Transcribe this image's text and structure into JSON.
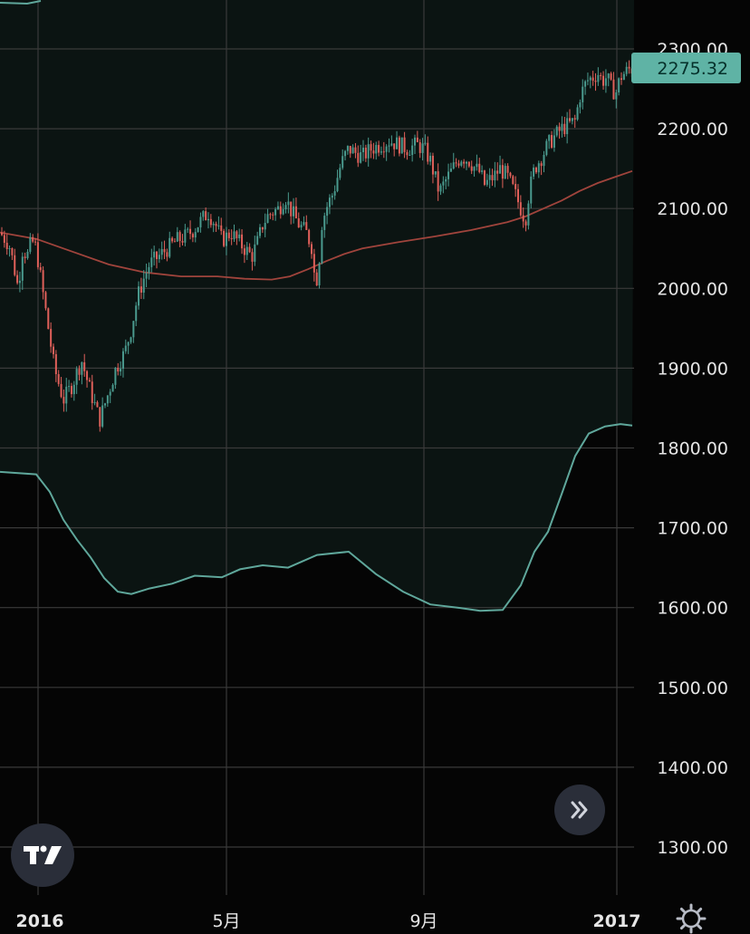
{
  "colors": {
    "background": "#050505",
    "grid": "#3a3a3a",
    "up_candle": "#4a9a8e",
    "down_candle": "#e0605a",
    "envelope": "#5fa79b",
    "envelope_fill": "#0b1412",
    "moving_average": "#a0443c",
    "last_price_badge": "#5fb3a5"
  },
  "last_price": "2275.32",
  "chart_data": {
    "type": "candlestick",
    "ylim": [
      1240,
      2340
    ],
    "y_ticks": [
      {
        "value": 2300,
        "label": "2300.00"
      },
      {
        "value": 2200,
        "label": "2200.00"
      },
      {
        "value": 2100,
        "label": "2100.00"
      },
      {
        "value": 2000,
        "label": "2000.00"
      },
      {
        "value": 1900,
        "label": "1900.00"
      },
      {
        "value": 1800,
        "label": "1800.00"
      },
      {
        "value": 1700,
        "label": "1700.00"
      },
      {
        "value": 1600,
        "label": "1600.00"
      },
      {
        "value": 1500,
        "label": "1500.00"
      },
      {
        "value": 1400,
        "label": "1400.00"
      },
      {
        "value": 1300,
        "label": "1300.00"
      }
    ],
    "x_ticks": [
      {
        "label": "2016",
        "bold": true
      },
      {
        "label": "5月",
        "bold": false
      },
      {
        "label": "9月",
        "bold": false
      },
      {
        "label": "2017",
        "bold": true
      }
    ],
    "price": {
      "x": [
        0,
        10,
        15,
        20,
        25,
        30,
        35,
        40,
        48,
        60,
        70,
        80,
        90,
        100,
        110,
        120,
        128,
        138,
        145,
        152,
        158,
        165,
        175,
        185,
        195,
        205,
        215,
        222,
        230,
        238,
        245,
        255,
        262,
        270,
        278,
        285,
        290,
        295,
        300,
        308,
        315,
        320,
        325,
        330,
        338,
        345,
        348,
        352,
        355,
        360,
        368,
        375,
        380,
        385,
        392,
        400,
        410,
        420,
        430,
        440,
        450,
        460,
        468,
        475,
        480,
        485,
        492,
        500,
        505,
        510,
        518,
        525,
        530,
        535,
        540,
        545,
        552,
        560,
        568,
        575,
        580,
        584,
        590,
        598,
        605,
        612,
        620,
        628,
        635,
        640,
        648,
        655,
        660,
        665,
        670,
        675,
        680,
        685,
        690,
        695,
        698
      ],
      "close": [
        2070,
        2055,
        2030,
        2000,
        2050,
        2040,
        2060,
        2050,
        1990,
        1900,
        1860,
        1880,
        1910,
        1870,
        1835,
        1870,
        1900,
        1920,
        1950,
        1990,
        2010,
        2030,
        2040,
        2050,
        2060,
        2065,
        2075,
        2085,
        2095,
        2080,
        2060,
        2070,
        2060,
        2050,
        2040,
        2060,
        2080,
        2090,
        2095,
        2100,
        2115,
        2100,
        2090,
        2080,
        2070,
        2050,
        2000,
        2030,
        2080,
        2100,
        2120,
        2150,
        2165,
        2175,
        2170,
        2165,
        2175,
        2180,
        2185,
        2180,
        2175,
        2180,
        2175,
        2160,
        2140,
        2120,
        2135,
        2150,
        2160,
        2165,
        2160,
        2150,
        2145,
        2130,
        2135,
        2140,
        2150,
        2140,
        2120,
        2100,
        2085,
        2120,
        2150,
        2165,
        2180,
        2190,
        2200,
        2205,
        2210,
        2240,
        2260,
        2265,
        2270,
        2260,
        2265,
        2250,
        2245,
        2265,
        2270,
        2275,
        2275
      ]
    },
    "moving_average": {
      "x": [
        0,
        40,
        80,
        120,
        160,
        200,
        240,
        270,
        300,
        320,
        340,
        360,
        380,
        400,
        440,
        480,
        520,
        560,
        580,
        600,
        620,
        640,
        660,
        680,
        698
      ],
      "y": [
        2070,
        2062,
        2046,
        2030,
        2020,
        2015,
        2015,
        2012,
        2011,
        2015,
        2024,
        2034,
        2043,
        2050,
        2058,
        2065,
        2073,
        2083,
        2090,
        2100,
        2110,
        2122,
        2132,
        2140,
        2147
      ]
    },
    "envelope": {
      "x": [
        0,
        40,
        55,
        70,
        85,
        100,
        115,
        130,
        145,
        165,
        190,
        215,
        245,
        265,
        290,
        318,
        350,
        385,
        415,
        445,
        475,
        505,
        530,
        555,
        575,
        590,
        605,
        620,
        635,
        650,
        668,
        685,
        698
      ],
      "y": [
        1770,
        1767,
        1745,
        1710,
        1685,
        1663,
        1637,
        1620,
        1617,
        1624,
        1630,
        1640,
        1638,
        1648,
        1653,
        1650,
        1666,
        1670,
        1642,
        1620,
        1604,
        1600,
        1596,
        1597,
        1628,
        1670,
        1695,
        1742,
        1790,
        1818,
        1827,
        1830,
        1828
      ]
    }
  }
}
